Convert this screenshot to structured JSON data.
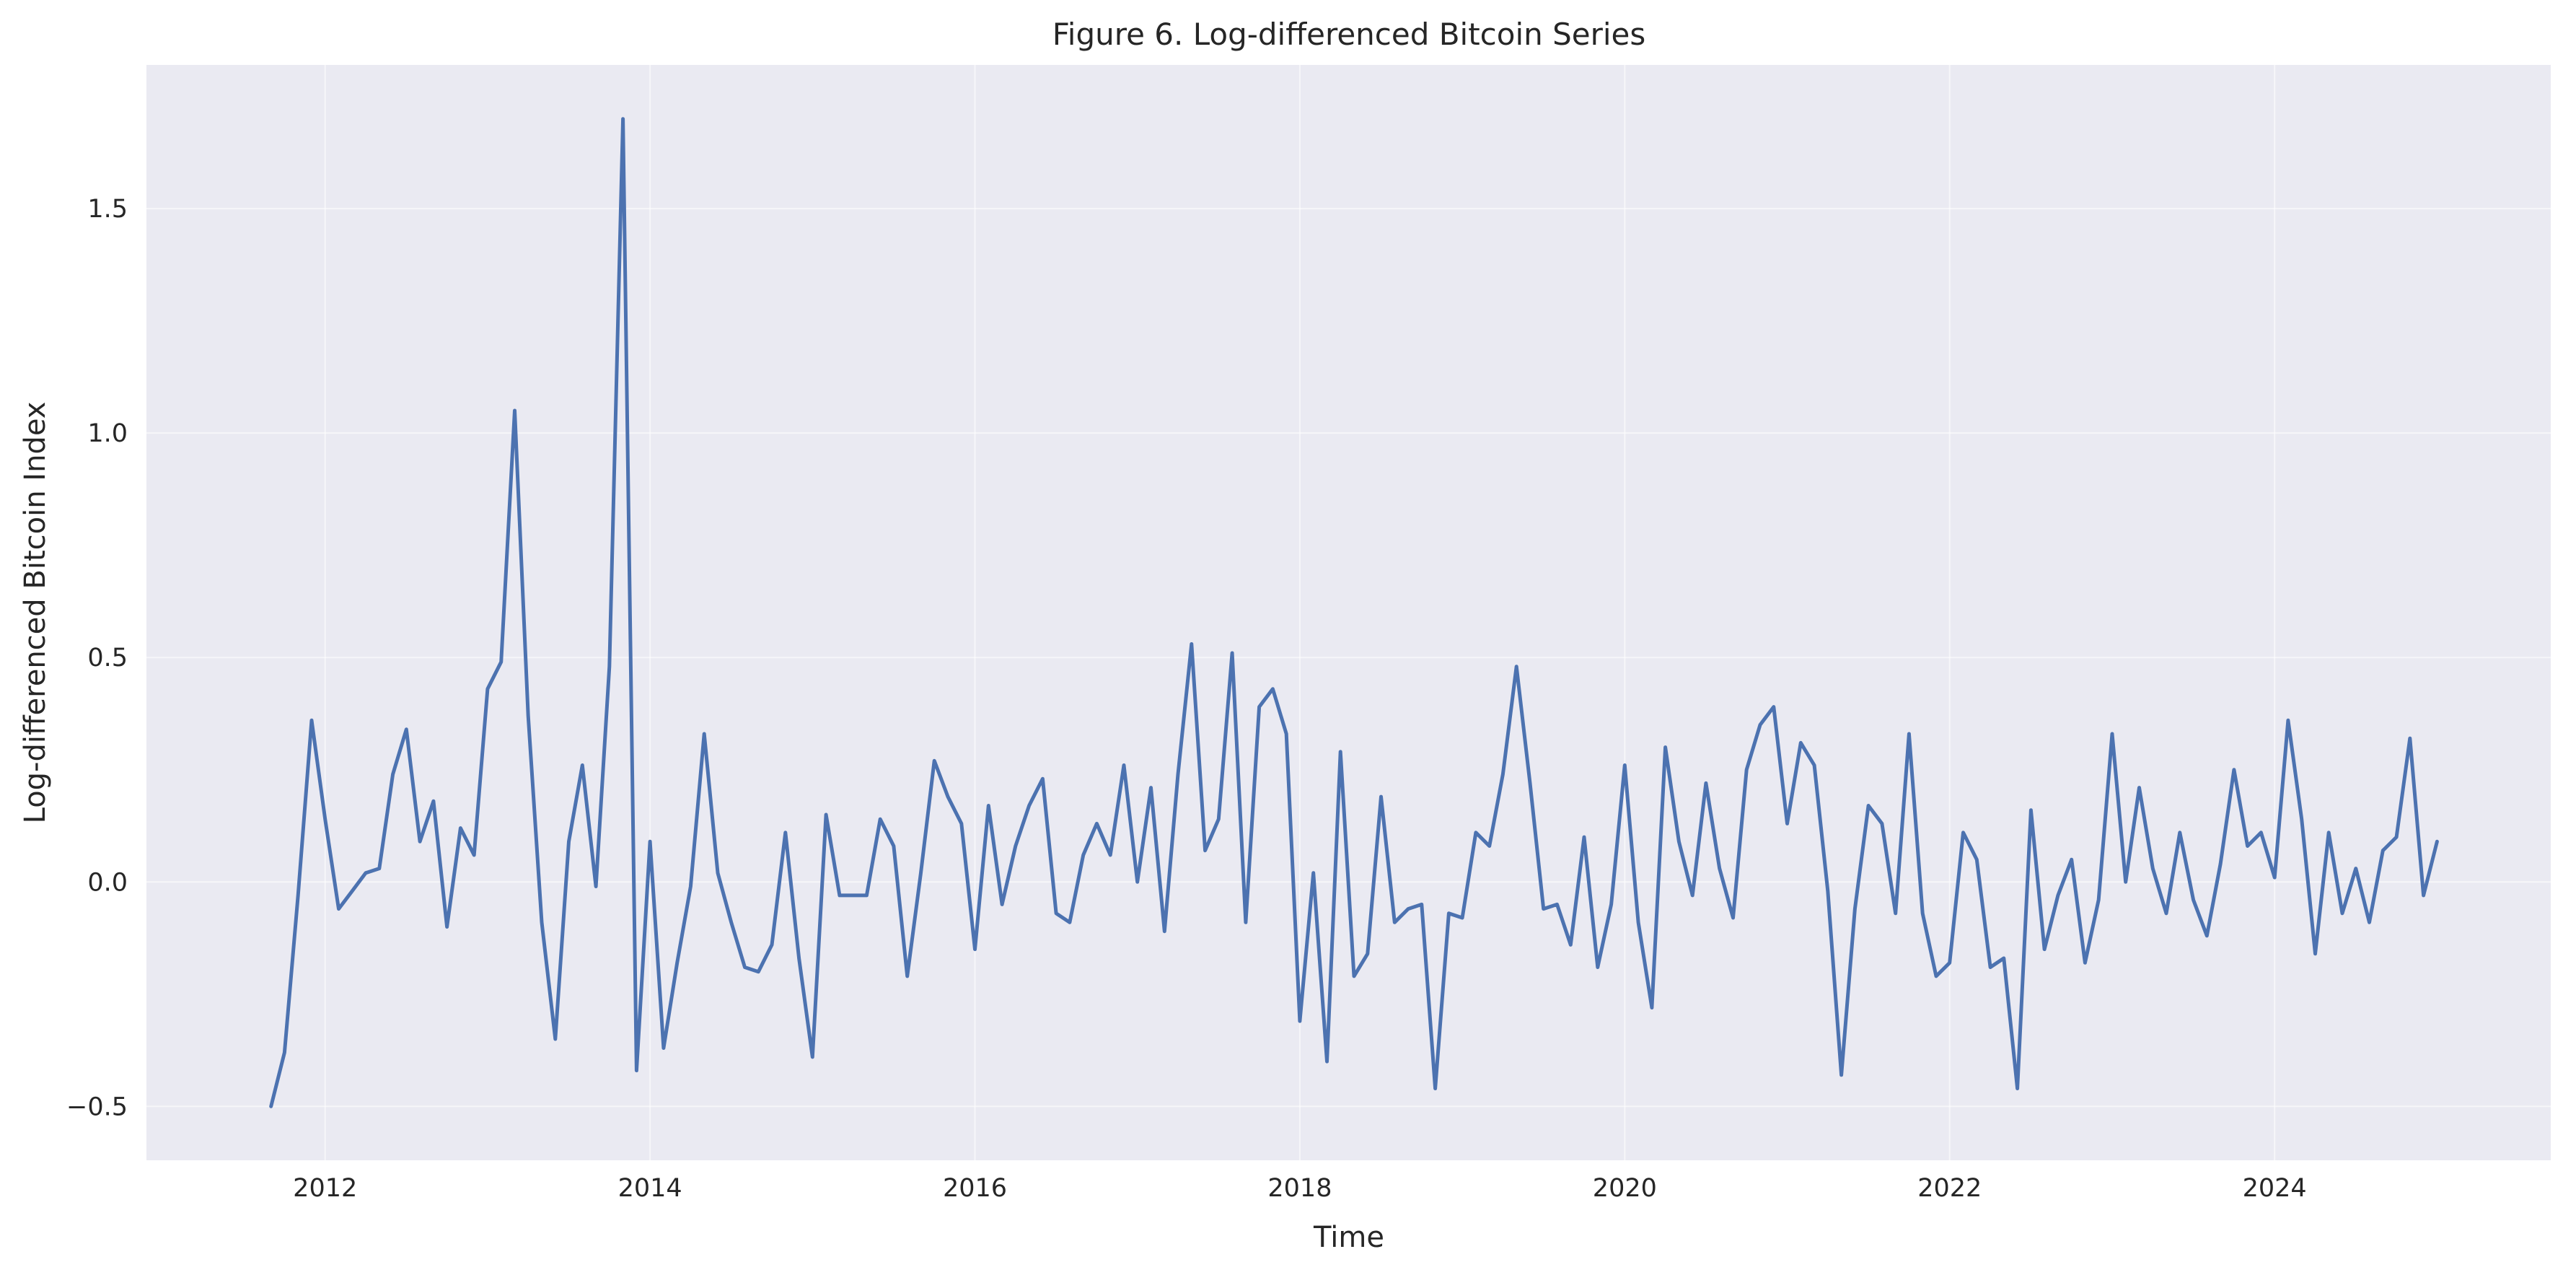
{
  "chart_data": {
    "type": "line",
    "title": "Figure 6. Log-differenced Bitcoin Series",
    "xlabel": "Time",
    "ylabel": "Log-differenced Bitcoin Index",
    "xlim": [
      2010.9,
      2025.7
    ],
    "ylim": [
      -0.62,
      1.82
    ],
    "xticks": [
      2012,
      2014,
      2016,
      2018,
      2020,
      2022,
      2024
    ],
    "xtick_labels": [
      "2012",
      "2014",
      "2016",
      "2018",
      "2020",
      "2022",
      "2024"
    ],
    "yticks": [
      -0.5,
      0.0,
      0.5,
      1.0,
      1.5
    ],
    "ytick_labels": [
      "−0.5",
      "0.0",
      "0.5",
      "1.0",
      "1.5"
    ],
    "grid": true,
    "series": [
      {
        "color": "#4c72b0",
        "x": [
          "2011-09",
          "2011-10",
          "2011-11",
          "2011-12",
          "2012-01",
          "2012-02",
          "2012-03",
          "2012-04",
          "2012-05",
          "2012-06",
          "2012-07",
          "2012-08",
          "2012-09",
          "2012-10",
          "2012-11",
          "2012-12",
          "2013-01",
          "2013-02",
          "2013-03",
          "2013-04",
          "2013-05",
          "2013-06",
          "2013-07",
          "2013-08",
          "2013-09",
          "2013-10",
          "2013-11",
          "2013-12",
          "2014-01",
          "2014-02",
          "2014-03",
          "2014-04",
          "2014-05",
          "2014-06",
          "2014-07",
          "2014-08",
          "2014-09",
          "2014-10",
          "2014-11",
          "2014-12",
          "2015-01",
          "2015-02",
          "2015-03",
          "2015-04",
          "2015-05",
          "2015-06",
          "2015-07",
          "2015-08",
          "2015-09",
          "2015-10",
          "2015-11",
          "2015-12",
          "2016-01",
          "2016-02",
          "2016-03",
          "2016-04",
          "2016-05",
          "2016-06",
          "2016-07",
          "2016-08",
          "2016-09",
          "2016-10",
          "2016-11",
          "2016-12",
          "2017-01",
          "2017-02",
          "2017-03",
          "2017-04",
          "2017-05",
          "2017-06",
          "2017-07",
          "2017-08",
          "2017-09",
          "2017-10",
          "2017-11",
          "2017-12",
          "2018-01",
          "2018-02",
          "2018-03",
          "2018-04",
          "2018-05",
          "2018-06",
          "2018-07",
          "2018-08",
          "2018-09",
          "2018-10",
          "2018-11",
          "2018-12",
          "2019-01",
          "2019-02",
          "2019-03",
          "2019-04",
          "2019-05",
          "2019-06",
          "2019-07",
          "2019-08",
          "2019-09",
          "2019-10",
          "2019-11",
          "2019-12",
          "2020-01",
          "2020-02",
          "2020-03",
          "2020-04",
          "2020-05",
          "2020-06",
          "2020-07",
          "2020-08",
          "2020-09",
          "2020-10",
          "2020-11",
          "2020-12",
          "2021-01",
          "2021-02",
          "2021-03",
          "2021-04",
          "2021-05",
          "2021-06",
          "2021-07",
          "2021-08",
          "2021-09",
          "2021-10",
          "2021-11",
          "2021-12",
          "2022-01",
          "2022-02",
          "2022-03",
          "2022-04",
          "2022-05",
          "2022-06",
          "2022-07",
          "2022-08",
          "2022-09",
          "2022-10",
          "2022-11",
          "2022-12",
          "2023-01",
          "2023-02",
          "2023-03",
          "2023-04",
          "2023-05",
          "2023-06",
          "2023-07",
          "2023-08",
          "2023-09",
          "2023-10",
          "2023-11",
          "2023-12",
          "2024-01",
          "2024-02",
          "2024-03",
          "2024-04",
          "2024-05",
          "2024-06",
          "2024-07",
          "2024-08",
          "2024-09",
          "2024-10",
          "2024-11",
          "2024-12",
          "2025-01"
        ],
        "values": [
          -0.5,
          -0.38,
          -0.03,
          0.36,
          0.14,
          -0.06,
          -0.02,
          0.02,
          0.03,
          0.24,
          0.34,
          0.09,
          0.18,
          -0.1,
          0.12,
          0.06,
          0.43,
          0.49,
          1.05,
          0.37,
          -0.09,
          -0.35,
          0.09,
          0.26,
          -0.01,
          0.48,
          1.7,
          -0.42,
          0.09,
          -0.37,
          -0.18,
          -0.01,
          0.33,
          0.02,
          -0.09,
          -0.19,
          -0.2,
          -0.14,
          0.11,
          -0.17,
          -0.39,
          0.15,
          -0.03,
          -0.03,
          -0.03,
          0.14,
          0.08,
          -0.21,
          0.02,
          0.27,
          0.19,
          0.13,
          -0.15,
          0.17,
          -0.05,
          0.08,
          0.17,
          0.23,
          -0.07,
          -0.09,
          0.06,
          0.13,
          0.06,
          0.26,
          0.0,
          0.21,
          -0.11,
          0.24,
          0.53,
          0.07,
          0.14,
          0.51,
          -0.09,
          0.39,
          0.43,
          0.33,
          -0.31,
          0.02,
          -0.4,
          0.29,
          -0.21,
          -0.16,
          0.19,
          -0.09,
          -0.06,
          -0.05,
          -0.46,
          -0.07,
          -0.08,
          0.11,
          0.08,
          0.24,
          0.48,
          0.22,
          -0.06,
          -0.05,
          -0.14,
          0.1,
          -0.19,
          -0.05,
          0.26,
          -0.09,
          -0.28,
          0.3,
          0.09,
          -0.03,
          0.22,
          0.03,
          -0.08,
          0.25,
          0.35,
          0.39,
          0.13,
          0.31,
          0.26,
          -0.02,
          -0.43,
          -0.06,
          0.17,
          0.13,
          -0.07,
          0.33,
          -0.07,
          -0.21,
          -0.18,
          0.11,
          0.05,
          -0.19,
          -0.17,
          -0.46,
          0.16,
          -0.15,
          -0.03,
          0.05,
          -0.18,
          -0.04,
          0.33,
          0.0,
          0.21,
          0.03,
          -0.07,
          0.11,
          -0.04,
          -0.12,
          0.04,
          0.25,
          0.08,
          0.11,
          0.01,
          0.36,
          0.14,
          -0.16,
          0.11,
          -0.07,
          0.03,
          -0.09,
          0.07,
          0.1,
          0.32,
          -0.03,
          0.09
        ]
      }
    ]
  }
}
